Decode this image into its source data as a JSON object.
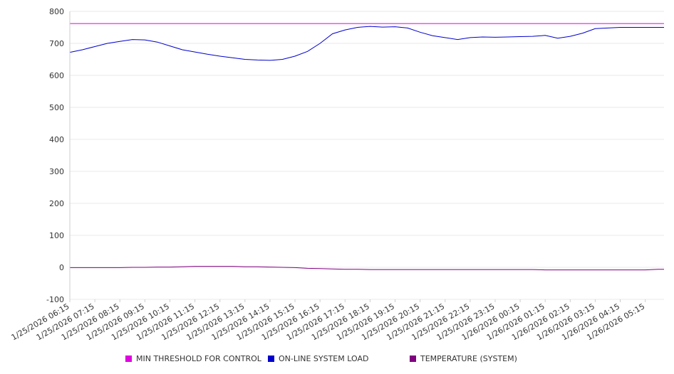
{
  "chart_data": {
    "type": "line",
    "title": "",
    "xlabel": "",
    "ylabel": "",
    "ylim": [
      -100,
      800
    ],
    "y_ticks": [
      "800",
      "700",
      "600",
      "500",
      "400",
      "300",
      "200",
      "100",
      "0",
      "-100"
    ],
    "grid": true,
    "legend_position": "bottom",
    "x_tick_labels": [
      "1/25/2026 06:15",
      "1/25/2026 07:15",
      "1/25/2026 08:15",
      "1/25/2026 09:15",
      "1/25/2026 10:15",
      "1/25/2026 11:15",
      "1/25/2026 12:15",
      "1/25/2026 13:15",
      "1/25/2026 14:15",
      "1/25/2026 15:15",
      "1/25/2026 16:15",
      "1/25/2026 17:15",
      "1/25/2026 18:15",
      "1/25/2026 19:15",
      "1/25/2026 20:15",
      "1/25/2026 21:15",
      "1/25/2026 22:15",
      "1/25/2026 23:15",
      "1/26/2026 00:15",
      "1/26/2026 01:15",
      "1/26/2026 02:15",
      "1/26/2026 03:15",
      "1/26/2026 04:15",
      "1/26/2026 05:15"
    ],
    "x": [
      "1/25/2026 06:15",
      "1/25/2026 06:45",
      "1/25/2026 07:15",
      "1/25/2026 07:45",
      "1/25/2026 08:15",
      "1/25/2026 08:45",
      "1/25/2026 09:15",
      "1/25/2026 09:45",
      "1/25/2026 10:15",
      "1/25/2026 10:45",
      "1/25/2026 11:15",
      "1/25/2026 11:45",
      "1/25/2026 12:15",
      "1/25/2026 12:45",
      "1/25/2026 13:15",
      "1/25/2026 13:45",
      "1/25/2026 14:15",
      "1/25/2026 14:45",
      "1/25/2026 15:15",
      "1/25/2026 15:45",
      "1/25/2026 16:15",
      "1/25/2026 16:45",
      "1/25/2026 17:15",
      "1/25/2026 17:45",
      "1/25/2026 18:15",
      "1/25/2026 18:45",
      "1/25/2026 19:15",
      "1/25/2026 19:45",
      "1/25/2026 20:15",
      "1/25/2026 20:45",
      "1/25/2026 21:15",
      "1/25/2026 21:45",
      "1/25/2026 22:15",
      "1/25/2026 22:45",
      "1/25/2026 23:15",
      "1/25/2026 23:45",
      "1/26/2026 00:15",
      "1/26/2026 00:45",
      "1/26/2026 01:15",
      "1/26/2026 01:45",
      "1/26/2026 02:15",
      "1/26/2026 02:45",
      "1/26/2026 03:15",
      "1/26/2026 03:45",
      "1/26/2026 04:15",
      "1/26/2026 04:45",
      "1/26/2026 05:15",
      "1/26/2026 05:45",
      "1/26/2026 06:00"
    ],
    "series": [
      {
        "name": "MIN THRESHOLD FOR CONTROL",
        "color": "#e000e0",
        "values": [
          762,
          762,
          762,
          762,
          762,
          762,
          762,
          762,
          762,
          762,
          762,
          762,
          762,
          762,
          762,
          762,
          762,
          762,
          762,
          762,
          762,
          762,
          762,
          762,
          762,
          762,
          762,
          762,
          762,
          762,
          762,
          762,
          762,
          762,
          762,
          762,
          762,
          762,
          762,
          762,
          762,
          762,
          762,
          762,
          762,
          762,
          762,
          762,
          762
        ]
      },
      {
        "name": "ON-LINE SYSTEM LOAD",
        "color": "#0000cc",
        "values": [
          672,
          680,
          690,
          700,
          706,
          712,
          711,
          704,
          692,
          680,
          673,
          666,
          660,
          655,
          650,
          648,
          647,
          650,
          660,
          675,
          700,
          730,
          742,
          750,
          753,
          751,
          752,
          748,
          735,
          724,
          718,
          712,
          718,
          720,
          719,
          720,
          721,
          722,
          725,
          716,
          722,
          732,
          746,
          748,
          750,
          750,
          750,
          750,
          750
        ]
      },
      {
        "name": "TEMPERATURE (SYSTEM)",
        "color": "#800080",
        "values": [
          -1,
          -1,
          -1,
          -1,
          -1,
          0,
          0,
          1,
          1,
          2,
          3,
          3,
          3,
          3,
          2,
          2,
          1,
          0,
          -1,
          -3,
          -4,
          -5,
          -6,
          -6,
          -7,
          -7,
          -7,
          -7,
          -7,
          -7,
          -7,
          -7,
          -7,
          -7,
          -7,
          -7,
          -7,
          -7,
          -8,
          -8,
          -8,
          -8,
          -8,
          -8,
          -8,
          -8,
          -8,
          -6,
          -6
        ]
      }
    ]
  }
}
